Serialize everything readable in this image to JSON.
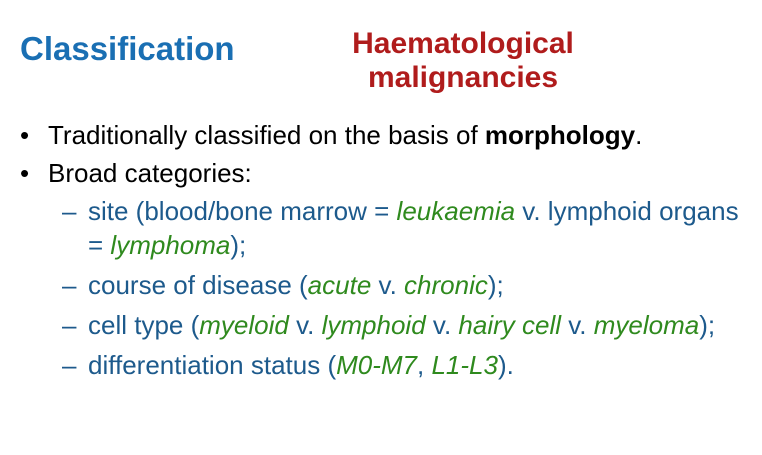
{
  "title": "Classification",
  "subtitle": {
    "line1": "Haematological",
    "line2": "malignancies"
  },
  "bullets": [
    {
      "parts": [
        {
          "text": "Traditionally classified on the basis of ",
          "style": "plain"
        },
        {
          "text": "morphology",
          "style": "bold"
        },
        {
          "text": ".",
          "style": "plain"
        }
      ]
    },
    {
      "parts": [
        {
          "text": "Broad categories:",
          "style": "plain"
        }
      ]
    }
  ],
  "subitems": [
    {
      "parts": [
        {
          "text": "site (blood/bone marrow = ",
          "style": "plain"
        },
        {
          "text": "leukaemia",
          "style": "italic"
        },
        {
          "text": " v. lymphoid organs = ",
          "style": "plain"
        },
        {
          "text": "lymphoma",
          "style": "italic"
        },
        {
          "text": ");",
          "style": "plain"
        }
      ]
    },
    {
      "parts": [
        {
          "text": "course of disease (",
          "style": "plain"
        },
        {
          "text": "acute",
          "style": "italic"
        },
        {
          "text": " v. ",
          "style": "plain"
        },
        {
          "text": "chronic",
          "style": "italic"
        },
        {
          "text": ");",
          "style": "plain"
        }
      ]
    },
    {
      "parts": [
        {
          "text": "cell type (",
          "style": "plain"
        },
        {
          "text": "myeloid",
          "style": "italic"
        },
        {
          "text": " v. ",
          "style": "plain"
        },
        {
          "text": "lymphoid",
          "style": "italic"
        },
        {
          "text": " v. ",
          "style": "plain"
        },
        {
          "text": "hairy cell",
          "style": "italic"
        },
        {
          "text": " v. ",
          "style": "plain"
        },
        {
          "text": "myeloma",
          "style": "italic"
        },
        {
          "text": ");",
          "style": "plain"
        }
      ]
    },
    {
      "parts": [
        {
          "text": "differentiation status (",
          "style": "plain"
        },
        {
          "text": "M0-M7",
          "style": "italic"
        },
        {
          "text": ", ",
          "style": "plain"
        },
        {
          "text": "L1-L3",
          "style": "italic"
        },
        {
          "text": ").",
          "style": "plain"
        }
      ]
    }
  ],
  "colors": {
    "title": "#1a6fb3",
    "subtitle": "#b01c1c",
    "subitem_text": "#1d5a8c",
    "italic_terms": "#2f8a1e"
  }
}
